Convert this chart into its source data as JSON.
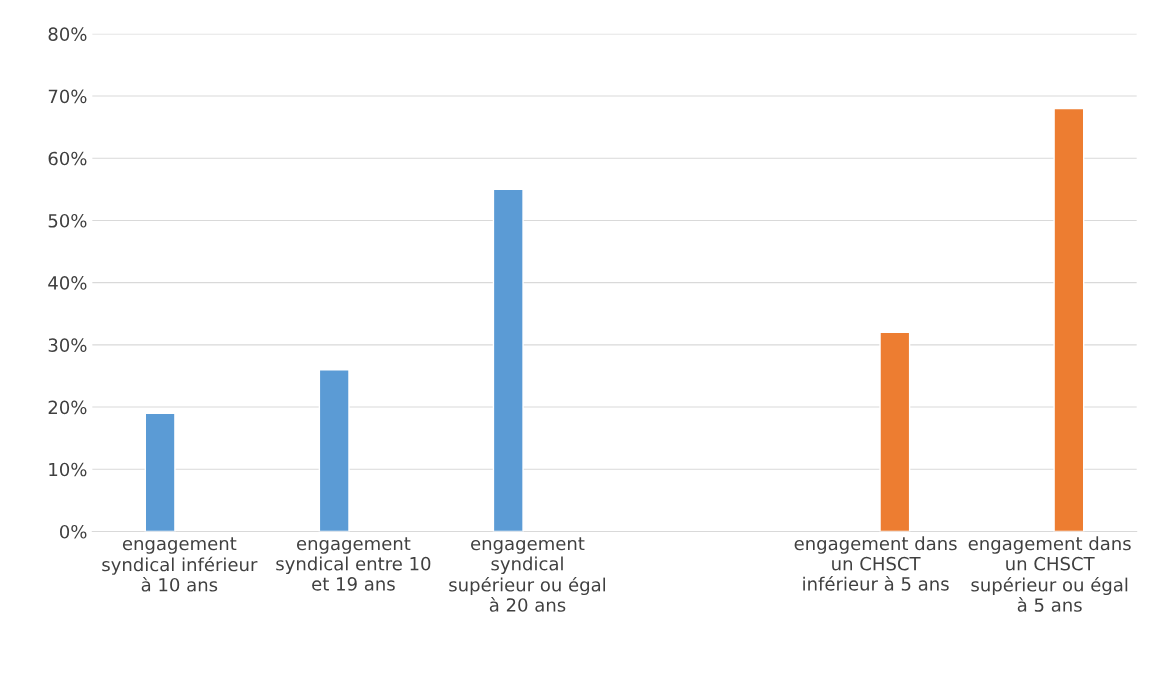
{
  "chart_data": {
    "type": "bar",
    "categories": [
      "engagement\nsyndical inférieur\nà 10 ans",
      "engagement\nsyndical entre 10\net 19 ans",
      "engagement\nsyndical\nsupérieur ou égal\nà 20 ans",
      null,
      "engagement dans\nun CHSCT\ninférieur à 5 ans",
      "engagement dans\nun CHSCT\nsupérieur ou égal\nà 5 ans"
    ],
    "series": [
      {
        "color": "#5b9bd5",
        "values": [
          19,
          26,
          55,
          null,
          null,
          null
        ]
      },
      {
        "color": "#ed7d31",
        "values": [
          null,
          null,
          null,
          null,
          32,
          68
        ]
      }
    ],
    "ylim": [
      0,
      80
    ],
    "yticks": [
      {
        "value": 0,
        "label": "0%"
      },
      {
        "value": 10,
        "label": "10%"
      },
      {
        "value": 20,
        "label": "20%"
      },
      {
        "value": 30,
        "label": "30%"
      },
      {
        "value": 40,
        "label": "40%"
      },
      {
        "value": 50,
        "label": "50%"
      },
      {
        "value": 60,
        "label": "60%"
      },
      {
        "value": 70,
        "label": "70%"
      },
      {
        "value": 80,
        "label": "80%"
      }
    ],
    "grid": "y",
    "legend": false
  }
}
